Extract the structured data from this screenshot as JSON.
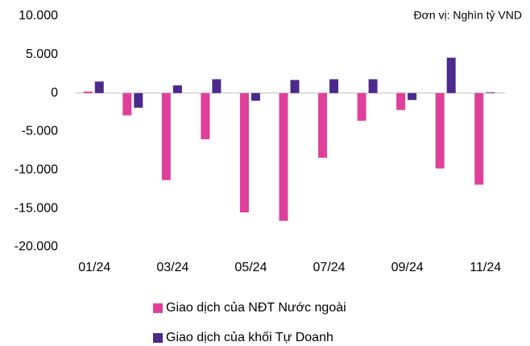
{
  "chart_data": {
    "type": "bar",
    "annotation": "Đơn vị: Nghìn tỷ VND",
    "categories": [
      "01/24",
      null,
      "03/24",
      null,
      "05/24",
      null,
      "07/24",
      null,
      "09/24",
      null,
      "11/24"
    ],
    "series": [
      {
        "name": "Giao dịch của NĐT Nước ngoài",
        "color": "#e0409b",
        "values": [
          200,
          -2900,
          -11300,
          -6000,
          -15500,
          -16600,
          -8400,
          -3600,
          -2200,
          -9800,
          -11900
        ]
      },
      {
        "name": "Giao dịch của khối Tự Doanh",
        "color": "#4b2a8c",
        "values": [
          1500,
          -1900,
          1000,
          1800,
          -1000,
          1700,
          1800,
          1800,
          -900,
          4600,
          100
        ]
      }
    ],
    "ylim": [
      -20000,
      10000
    ],
    "yticks": [
      {
        "value": 10000,
        "label": "10.000"
      },
      {
        "value": 5000,
        "label": "5.000"
      },
      0,
      {
        "value": -5000,
        "label": "-5.000"
      },
      {
        "value": -10000,
        "label": "-10.000"
      },
      {
        "value": -15000,
        "label": "-15.000"
      },
      {
        "value": -20000,
        "label": "-20.000"
      }
    ],
    "grid": false
  }
}
